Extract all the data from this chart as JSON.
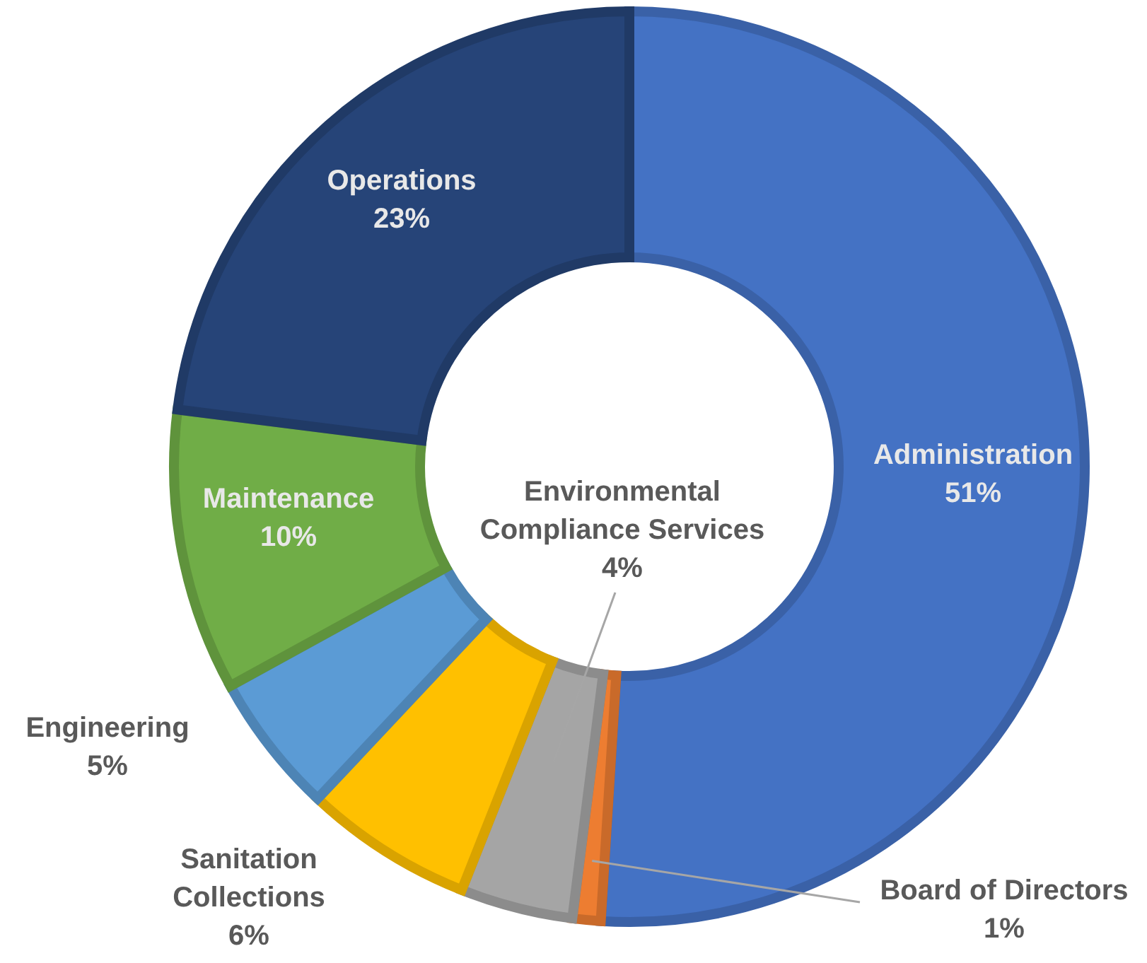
{
  "chart_data": {
    "type": "donut",
    "categories": [
      "Administration",
      "Board of Directors",
      "Environmental Compliance Services",
      "Sanitation Collections",
      "Engineering",
      "Maintenance",
      "Operations"
    ],
    "values": [
      51,
      1,
      4,
      6,
      5,
      10,
      23
    ],
    "value_labels": [
      "51%",
      "1%",
      "4%",
      "6%",
      "5%",
      "10%",
      "23%"
    ],
    "colors": [
      "#4472c4",
      "#ed7d31",
      "#a5a5a5",
      "#ffc000",
      "#5b9bd5",
      "#70ad47",
      "#264478"
    ]
  }
}
